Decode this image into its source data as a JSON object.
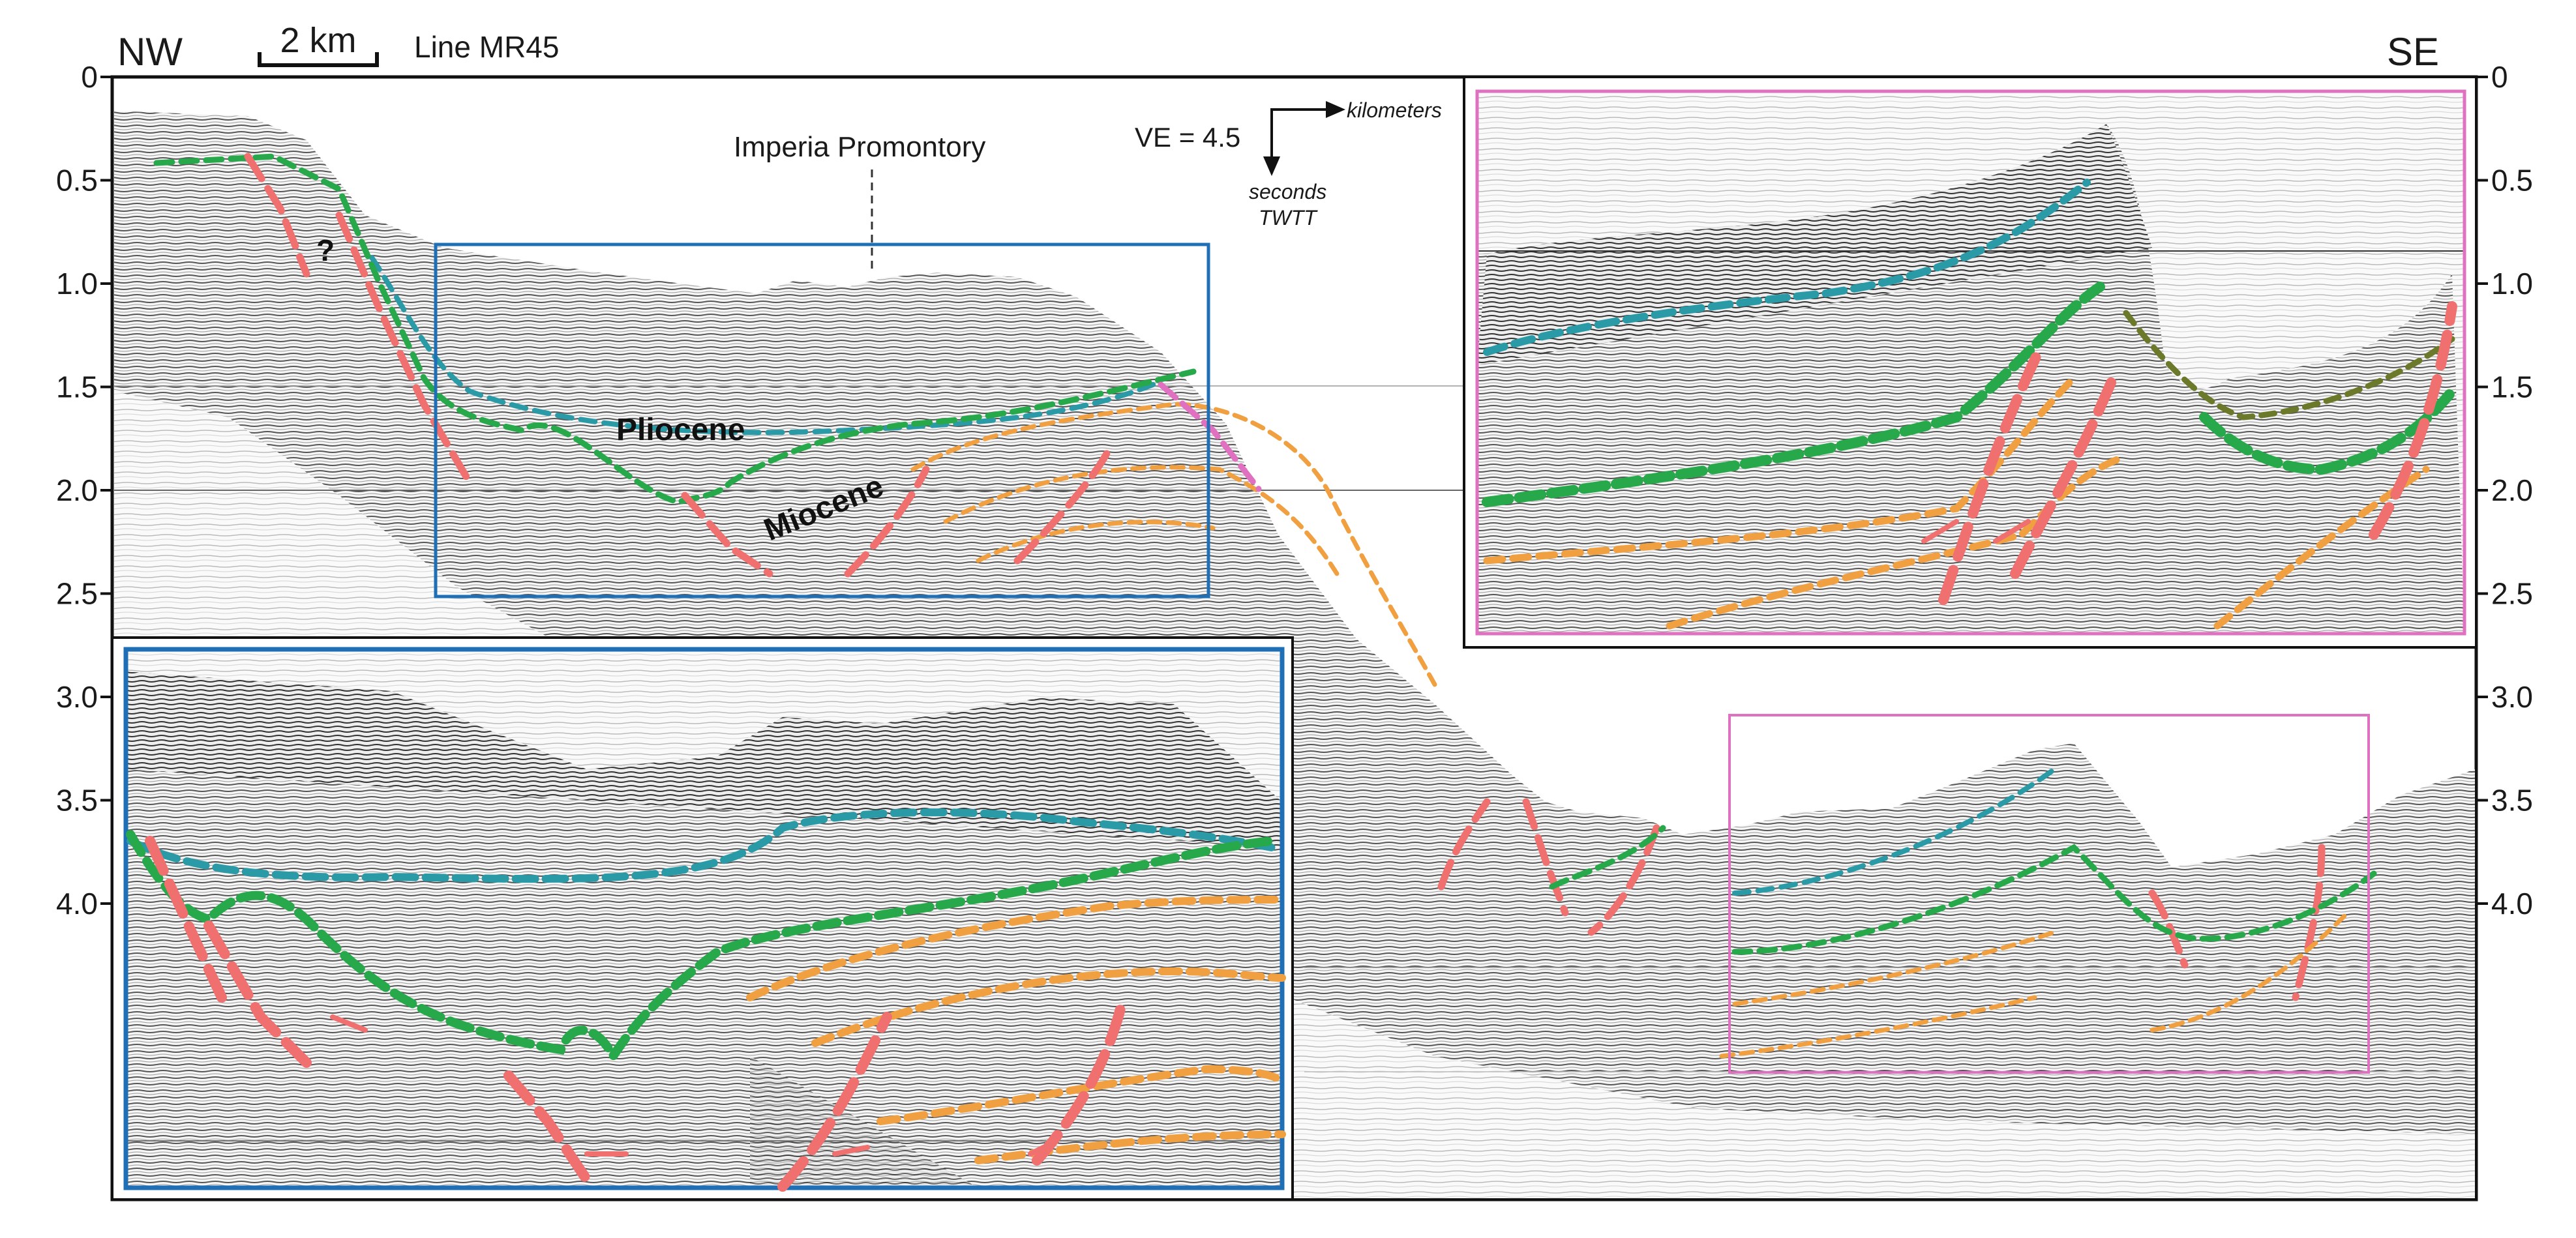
{
  "header": {
    "left_direction": "NW",
    "right_direction": "SE",
    "scale_bar": "2 km",
    "line_name": "Line MR45"
  },
  "axis": {
    "ticks": [
      "0",
      "0.5",
      "1.0",
      "1.5",
      "2.0",
      "2.5",
      "3.0",
      "3.5",
      "4.0"
    ]
  },
  "labels": {
    "promontory": "Imperia Promontory",
    "ve": "VE = 4.5",
    "x_unit": "kilometers",
    "y_unit_1": "seconds",
    "y_unit_2": "TWTT",
    "pliocene": "Pliocene",
    "miocene": "Miocene",
    "question": "?"
  },
  "colors": {
    "pliocene_top": "#2a9aa6",
    "miocene_top": "#27a84a",
    "fault": "#f07070",
    "intra_miocene": "#f0a040",
    "box_blue": "#1e6fb6",
    "box_pink": "#e070c0"
  }
}
